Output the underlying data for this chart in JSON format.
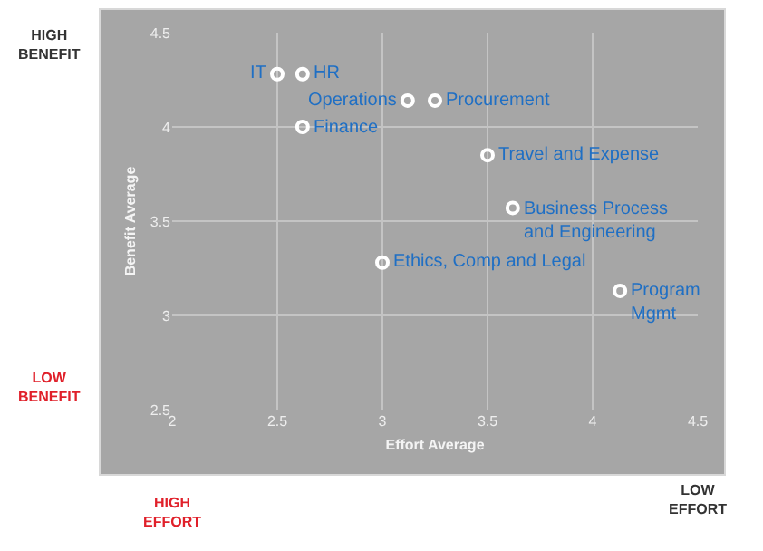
{
  "chart_data": {
    "type": "scatter",
    "xlabel": "Effort Average",
    "ylabel": "Benefit Average",
    "x": [
      2.5,
      2.62,
      3.12,
      3.25,
      2.62,
      3.5,
      3.62,
      3.0,
      4.13
    ],
    "values": [
      4.28,
      4.28,
      4.14,
      4.14,
      4.0,
      3.85,
      3.57,
      3.28,
      3.13
    ],
    "color": "#ffffff",
    "marker": "circle",
    "xlim": [
      2,
      4.5
    ],
    "xticks": [
      2,
      2.5,
      3,
      3.5,
      4,
      4.5
    ],
    "ylim": [
      2.5,
      4.5
    ],
    "yticks": [
      2.5,
      3,
      3.5,
      4,
      4.5
    ],
    "grid": true,
    "annotations": [
      {
        "text": "IT",
        "x": 2.5,
        "y": 4.28
      },
      {
        "text": "HR",
        "x": 2.62,
        "y": 4.28
      },
      {
        "text": "Operations",
        "x": 3.12,
        "y": 4.14
      },
      {
        "text": "Procurement",
        "x": 3.25,
        "y": 4.14
      },
      {
        "text": "Finance",
        "x": 2.62,
        "y": 4.0
      },
      {
        "text": "Travel and Expense",
        "x": 3.5,
        "y": 3.85
      },
      {
        "text": "Business Process and Engineering",
        "x": 3.62,
        "y": 3.57
      },
      {
        "text": "Ethics, Comp and Legal",
        "x": 3.0,
        "y": 3.28
      },
      {
        "text": "Program Mgmt",
        "x": 4.13,
        "y": 3.13
      },
      "HIGH BENEFIT",
      "LOW BENEFIT",
      "HIGH EFFORT",
      "LOW EFFORT"
    ]
  }
}
